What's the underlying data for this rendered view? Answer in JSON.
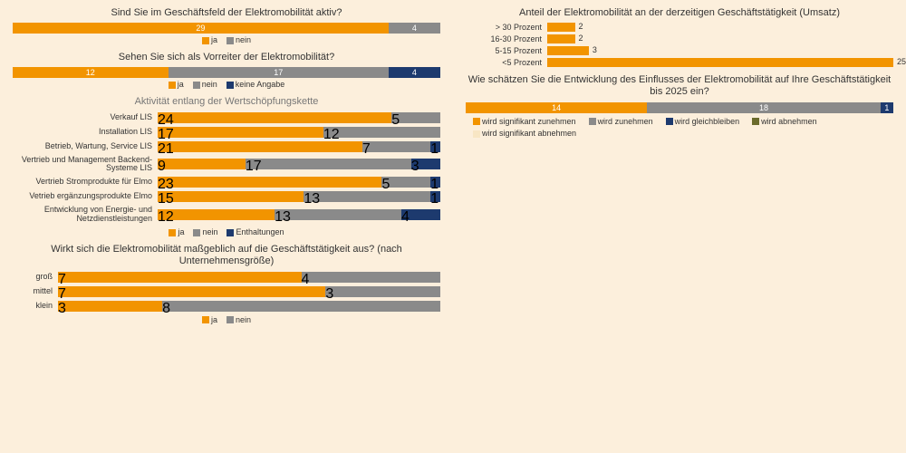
{
  "colors": {
    "orange": "#f29400",
    "gray": "#8a8a8a",
    "navy": "#1d3a6e",
    "olive": "#6b6b2b",
    "cream": "#f8e6c4",
    "bg": "#fcefdc"
  },
  "left": {
    "chart1": {
      "title": "Sind Sie im Geschäftsfeld der Elektromobilität aktiv?",
      "segments": [
        {
          "label": "29",
          "value": 29,
          "colorKey": "orange"
        },
        {
          "label": "4",
          "value": 4,
          "colorKey": "gray"
        }
      ],
      "legend": [
        {
          "text": "ja",
          "colorKey": "orange"
        },
        {
          "text": "nein",
          "colorKey": "gray"
        }
      ]
    },
    "chart2": {
      "title": "Sehen Sie sich als Vorreiter der Elektromobilität?",
      "segments": [
        {
          "label": "12",
          "value": 12,
          "colorKey": "orange"
        },
        {
          "label": "17",
          "value": 17,
          "colorKey": "gray"
        },
        {
          "label": "4",
          "value": 4,
          "colorKey": "navy"
        }
      ],
      "legend": [
        {
          "text": "ja",
          "colorKey": "orange"
        },
        {
          "text": "nein",
          "colorKey": "gray"
        },
        {
          "text": "keine Angabe",
          "colorKey": "navy"
        }
      ]
    },
    "chart3": {
      "title": "Aktivität entlang der Wertschöpfungskette",
      "rows": [
        {
          "label": "Verkauf LIS",
          "segments": [
            {
              "label": "24",
              "value": 24,
              "colorKey": "orange"
            },
            {
              "label": "5",
              "value": 5,
              "colorKey": "gray"
            }
          ]
        },
        {
          "label": "Installation LIS",
          "segments": [
            {
              "label": "17",
              "value": 17,
              "colorKey": "orange"
            },
            {
              "label": "12",
              "value": 12,
              "colorKey": "gray"
            }
          ]
        },
        {
          "label": "Betrieb, Wartung, Service LIS",
          "segments": [
            {
              "label": "21",
              "value": 21,
              "colorKey": "orange"
            },
            {
              "label": "7",
              "value": 7,
              "colorKey": "gray"
            },
            {
              "label": "1",
              "value": 1,
              "colorKey": "navy"
            }
          ]
        },
        {
          "label": "Vertrieb und Management  Backend-Systeme LIS",
          "segments": [
            {
              "label": "9",
              "value": 9,
              "colorKey": "orange"
            },
            {
              "label": "17",
              "value": 17,
              "colorKey": "gray"
            },
            {
              "label": "3",
              "value": 3,
              "colorKey": "navy"
            }
          ]
        },
        {
          "label": "Vertrieb Stromprodukte für Elmo",
          "segments": [
            {
              "label": "23",
              "value": 23,
              "colorKey": "orange"
            },
            {
              "label": "5",
              "value": 5,
              "colorKey": "gray"
            },
            {
              "label": "1",
              "value": 1,
              "colorKey": "navy"
            }
          ]
        },
        {
          "label": "Vetrieb ergänzungsprodukte Elmo",
          "segments": [
            {
              "label": "15",
              "value": 15,
              "colorKey": "orange"
            },
            {
              "label": "13",
              "value": 13,
              "colorKey": "gray"
            },
            {
              "label": "1",
              "value": 1,
              "colorKey": "navy"
            }
          ]
        },
        {
          "label": "Entwicklung von Energie- und Netzdienstleistungen",
          "segments": [
            {
              "label": "12",
              "value": 12,
              "colorKey": "orange"
            },
            {
              "label": "13",
              "value": 13,
              "colorKey": "gray"
            },
            {
              "label": "4",
              "value": 4,
              "colorKey": "navy"
            }
          ]
        }
      ],
      "legend": [
        {
          "text": "ja",
          "colorKey": "orange"
        },
        {
          "text": "nein",
          "colorKey": "gray"
        },
        {
          "text": "Enthaltungen",
          "colorKey": "navy"
        }
      ]
    },
    "chart4": {
      "title": "Wirkt sich die Elektromobilität maßgeblich auf die Geschäftstätigkeit aus? (nach Unternehmensgröße)",
      "rows": [
        {
          "label": "groß",
          "segments": [
            {
              "label": "7",
              "value": 7,
              "colorKey": "orange"
            },
            {
              "label": "4",
              "value": 4,
              "colorKey": "gray"
            }
          ]
        },
        {
          "label": "mittel",
          "segments": [
            {
              "label": "7",
              "value": 7,
              "colorKey": "orange"
            },
            {
              "label": "3",
              "value": 3,
              "colorKey": "gray"
            }
          ]
        },
        {
          "label": "klein",
          "segments": [
            {
              "label": "3",
              "value": 3,
              "colorKey": "orange"
            },
            {
              "label": "8",
              "value": 8,
              "colorKey": "gray"
            }
          ]
        }
      ],
      "legend": [
        {
          "text": "ja",
          "colorKey": "orange"
        },
        {
          "text": "nein",
          "colorKey": "gray"
        }
      ]
    }
  },
  "right": {
    "chart5": {
      "title": "Anteil der Elektromobilität an der derzeitigen Geschäftstätigkeit (Umsatz)",
      "max": 25,
      "rows": [
        {
          "label": "> 30 Prozent",
          "value": 2
        },
        {
          "label": "16-30 Prozent",
          "value": 2
        },
        {
          "label": "5-15 Prozent",
          "value": 3
        },
        {
          "label": "<5 Prozent",
          "value": 25
        }
      ],
      "barColorKey": "orange"
    },
    "chart6": {
      "title": "Wie schätzen Sie die Entwicklung des Einflusses der Elektromobilität auf Ihre Geschäftstätigkeit bis 2025 ein?",
      "segments": [
        {
          "label": "14",
          "value": 14,
          "colorKey": "orange"
        },
        {
          "label": "18",
          "value": 18,
          "colorKey": "gray"
        },
        {
          "label": "1",
          "value": 1,
          "colorKey": "navy"
        }
      ],
      "legend": [
        {
          "text": "wird signifikant zunehmen",
          "colorKey": "orange"
        },
        {
          "text": "wird zunehmen",
          "colorKey": "gray"
        },
        {
          "text": "wird gleichbleiben",
          "colorKey": "navy"
        },
        {
          "text": "wird abnehmen",
          "colorKey": "olive"
        },
        {
          "text": "wird signifikant abnehmen",
          "colorKey": "cream"
        }
      ]
    }
  }
}
